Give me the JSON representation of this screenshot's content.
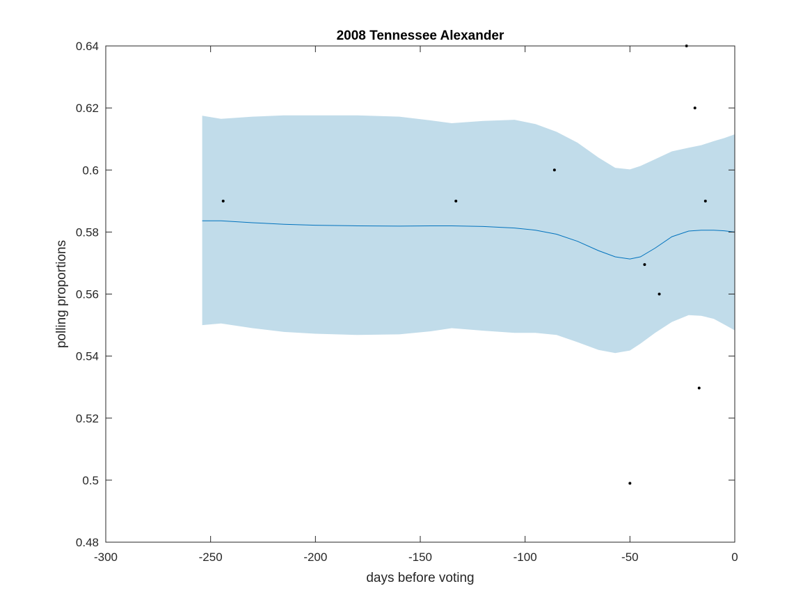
{
  "chart_data": {
    "type": "line",
    "title": "2008 Tennessee Alexander",
    "xlabel": "days before voting",
    "ylabel": "polling proportions",
    "xlim": [
      -300,
      0
    ],
    "ylim": [
      0.48,
      0.64
    ],
    "xticks": [
      -300,
      -250,
      -200,
      -150,
      -100,
      -50,
      0
    ],
    "yticks": [
      0.48,
      0.5,
      0.52,
      0.54,
      0.56,
      0.58,
      0.6,
      0.62,
      0.64
    ],
    "grid": false,
    "colors": {
      "band": "#c1dcea",
      "line": "#0072bd",
      "points": "#000000",
      "axes": "#262626"
    },
    "band": {
      "x": [
        -254,
        -245,
        -230,
        -215,
        -200,
        -180,
        -160,
        -145,
        -135,
        -120,
        -105,
        -95,
        -85,
        -75,
        -65,
        -57,
        -50,
        -45,
        -38,
        -30,
        -22,
        -16,
        -10,
        -5,
        0
      ],
      "upper": [
        0.6175,
        0.6165,
        0.6172,
        0.6176,
        0.6176,
        0.6176,
        0.6172,
        0.616,
        0.6151,
        0.6158,
        0.6162,
        0.6148,
        0.6123,
        0.6088,
        0.604,
        0.6007,
        0.6002,
        0.6013,
        0.6035,
        0.606,
        0.6072,
        0.608,
        0.6093,
        0.6103,
        0.6115
      ],
      "lower": [
        0.55,
        0.5505,
        0.549,
        0.5478,
        0.5472,
        0.5468,
        0.547,
        0.548,
        0.549,
        0.5482,
        0.5475,
        0.5475,
        0.5468,
        0.5445,
        0.542,
        0.541,
        0.5418,
        0.544,
        0.5475,
        0.551,
        0.5532,
        0.553,
        0.552,
        0.5502,
        0.5483
      ]
    },
    "mean": {
      "x": [
        -254,
        -245,
        -230,
        -215,
        -200,
        -180,
        -160,
        -145,
        -135,
        -120,
        -105,
        -95,
        -85,
        -75,
        -65,
        -57,
        -50,
        -45,
        -38,
        -30,
        -22,
        -16,
        -10,
        -5,
        0
      ],
      "y": [
        0.5836,
        0.5836,
        0.583,
        0.5825,
        0.5822,
        0.582,
        0.5819,
        0.582,
        0.582,
        0.5818,
        0.5813,
        0.5806,
        0.5793,
        0.577,
        0.574,
        0.572,
        0.5713,
        0.572,
        0.5748,
        0.5785,
        0.5803,
        0.5806,
        0.5806,
        0.5804,
        0.58
      ]
    },
    "points": {
      "x": [
        -244,
        -133,
        -86,
        -50,
        -43,
        -36,
        -23,
        -19,
        -17,
        -14
      ],
      "y": [
        0.59,
        0.59,
        0.6,
        0.499,
        0.5695,
        0.56,
        0.64,
        0.62,
        0.5297,
        0.59
      ]
    }
  }
}
